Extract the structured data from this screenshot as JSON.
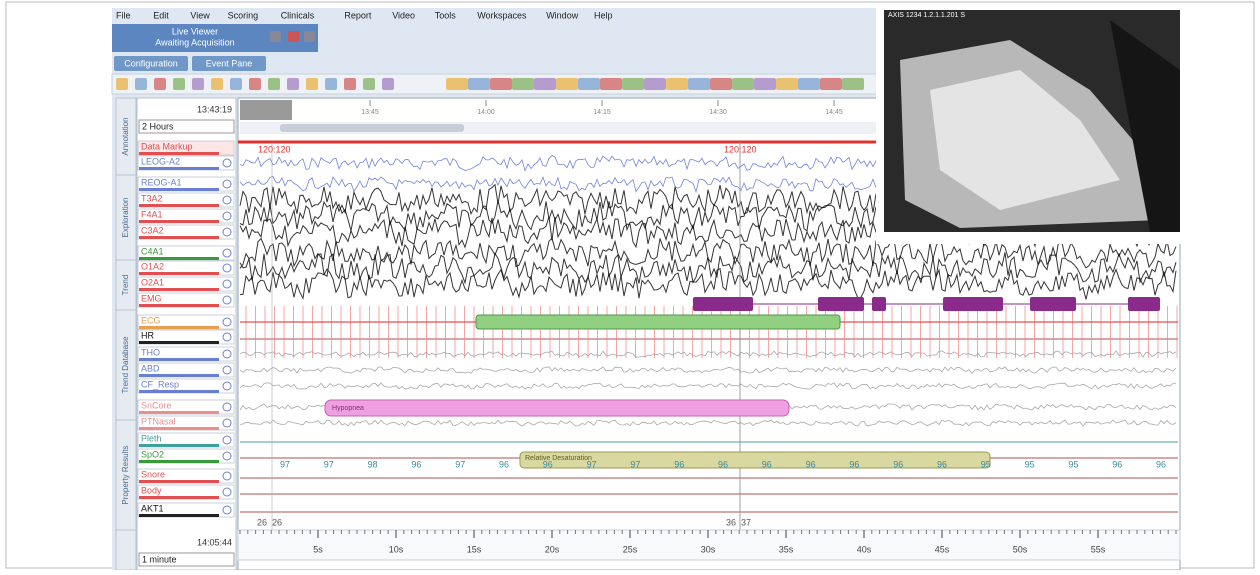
{
  "menu": [
    "File",
    "Edit",
    "View",
    "Scoring",
    "Clinicals",
    "Report",
    "Video",
    "Tools",
    "Workspaces",
    "Window",
    "Help"
  ],
  "status": {
    "line1": "Live Viewer",
    "line2": "Awaiting Acquisition"
  },
  "tabs": [
    "Configuration",
    "Event Pane"
  ],
  "side_tabs": [
    "Annotation",
    "Exploration",
    "Trend",
    "Trend Database",
    "Property Results"
  ],
  "top_time": "13:43:19",
  "top_zoom": "2 Hours",
  "timeline_labels": [
    "13:45",
    "14:00",
    "14:15",
    "14:30",
    "14:45"
  ],
  "channels": [
    {
      "label": "Data Markup",
      "color": "#e05050"
    },
    {
      "label": "LEOG-A2",
      "color": "#6a7fd0"
    },
    {
      "label": "REOG-A1",
      "color": "#6a7fd0"
    },
    {
      "label": "T3A2",
      "color": "#e05050"
    },
    {
      "label": "F4A1",
      "color": "#e05050"
    },
    {
      "label": "C3A2",
      "color": "#e05050"
    },
    {
      "label": "C4A1",
      "color": "#3a9a3a"
    },
    {
      "label": "O1A2",
      "color": "#e05050"
    },
    {
      "label": "O2A1",
      "color": "#e05050"
    },
    {
      "label": "EMG",
      "color": "#e05050"
    },
    {
      "label": "ECG",
      "color": "#e8a050"
    },
    {
      "label": "HR",
      "color": "#222222"
    },
    {
      "label": "THO",
      "color": "#6a7fd0"
    },
    {
      "label": "ABD",
      "color": "#6a7fd0"
    },
    {
      "label": "CF_Resp",
      "color": "#6a7fd0"
    },
    {
      "label": "SnCore",
      "color": "#e89090"
    },
    {
      "label": "PTNasal",
      "color": "#e89090"
    },
    {
      "label": "Pleth",
      "color": "#40a0a0"
    },
    {
      "label": "SpO2",
      "color": "#3a9a3a"
    },
    {
      "label": "Snore",
      "color": "#e05050"
    },
    {
      "label": "Body",
      "color": "#e05050"
    },
    {
      "label": "AKT1",
      "color": "#222222"
    }
  ],
  "markers": [
    "120:120",
    "120:120"
  ],
  "events": {
    "hypopnea": "Hypopnea",
    "desaturation": "Relative Desaturation"
  },
  "spo2_values": [
    97,
    97,
    98,
    96,
    97,
    96,
    96,
    97,
    97,
    96,
    96,
    96,
    96,
    96,
    96,
    96,
    95,
    95,
    95,
    96,
    96
  ],
  "cursor_labels": [
    "26",
    "26",
    "36",
    "37"
  ],
  "bottom_time": "14:05:44",
  "bottom_zoom": "1 minute",
  "axis_labels": [
    "5s",
    "10s",
    "15s",
    "20s",
    "25s",
    "30s",
    "35s",
    "40s",
    "45s",
    "50s",
    "55s"
  ],
  "video_caption": "AXIS 1234 1.2.1.1.201 S"
}
